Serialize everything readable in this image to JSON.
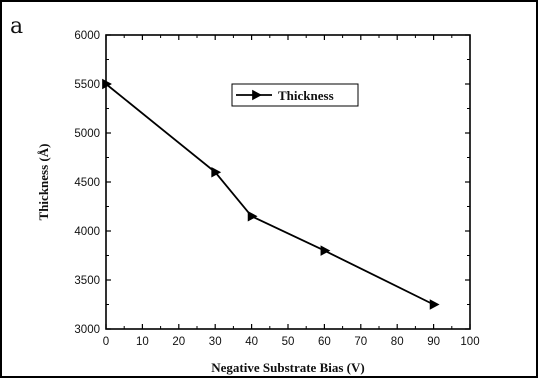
{
  "panel_label": "a",
  "chart_data": {
    "type": "line",
    "title": "",
    "xlabel": "Negative Substrate Bias (V)",
    "ylabel": "Thickness (Å)",
    "xlim": [
      0,
      100
    ],
    "ylim": [
      3000,
      6000
    ],
    "xticks": [
      0,
      10,
      20,
      30,
      40,
      50,
      60,
      70,
      80,
      90,
      100
    ],
    "yticks": [
      3000,
      3500,
      4000,
      4500,
      5000,
      5500,
      6000
    ],
    "grid": false,
    "legend_position": "top-center",
    "series": [
      {
        "name": "Thickness",
        "marker": "right-triangle",
        "color": "#000000",
        "x": [
          0,
          30,
          40,
          60,
          90
        ],
        "y": [
          5500,
          4600,
          4150,
          3800,
          3250
        ]
      }
    ]
  }
}
